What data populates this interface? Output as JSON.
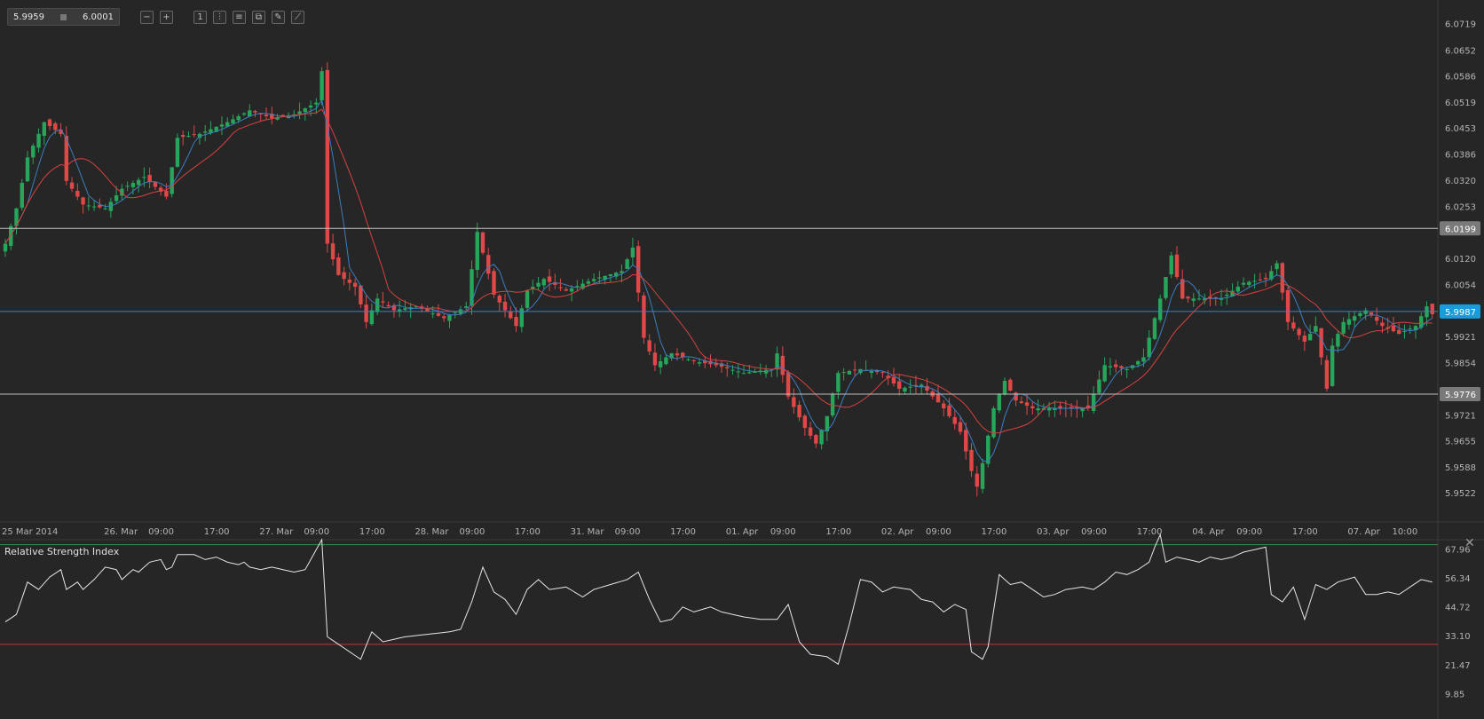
{
  "toolbar": {
    "bid": "5.9959",
    "ask": "6.0001",
    "buttons": [
      {
        "name": "zoom-out-icon",
        "glyph": "−"
      },
      {
        "name": "zoom-in-icon",
        "glyph": "+"
      },
      {
        "name": "timeframe-button",
        "glyph": "1"
      },
      {
        "name": "chart-type-icon",
        "glyph": "⫶"
      },
      {
        "name": "indicators-icon",
        "glyph": "≡"
      },
      {
        "name": "copy-icon",
        "glyph": "⧉"
      },
      {
        "name": "edit-icon",
        "glyph": "✎"
      },
      {
        "name": "draw-line-icon",
        "glyph": "⟋"
      }
    ]
  },
  "rsi_panel": {
    "title": "Relative Strength Index",
    "close_glyph": "✕"
  },
  "colors": {
    "background": "#262626",
    "bull": "#26a65b",
    "bear": "#e04848",
    "ma_fast": "#3a7ec1",
    "ma_slow": "#d9413f",
    "current_line": "#2f86c8",
    "current_badge": "#1a9cdb",
    "level_line": "#bfbfbf",
    "level_badge": "#7a7a7a",
    "rsi_line": "#e6e6e6",
    "rsi_upper": "#3c8c3c",
    "rsi_lower": "#c83232"
  },
  "chart_data": [
    {
      "type": "candlestick",
      "instrument_price_axis": true,
      "ylim": [
        5.945,
        6.075
      ],
      "y_ticks": [
        "6.0719",
        "6.0652",
        "6.0586",
        "6.0519",
        "6.0453",
        "6.0386",
        "6.0320",
        "6.0253",
        "6.0120",
        "6.0054",
        "5.9921",
        "5.9854",
        "5.9721",
        "5.9655",
        "5.9588",
        "5.9522"
      ],
      "x_labels": [
        {
          "text": "25 Mar 2014",
          "index": 0
        },
        {
          "text": "26. Mar",
          "index": 20
        },
        {
          "text": "09:00",
          "index": 28
        },
        {
          "text": "17:00",
          "index": 38
        },
        {
          "text": "27. Mar",
          "index": 48
        },
        {
          "text": "09:00",
          "index": 56
        },
        {
          "text": "17:00",
          "index": 66
        },
        {
          "text": "28. Mar",
          "index": 76
        },
        {
          "text": "09:00",
          "index": 84
        },
        {
          "text": "17:00",
          "index": 94
        },
        {
          "text": "31. Mar",
          "index": 104
        },
        {
          "text": "09:00",
          "index": 112
        },
        {
          "text": "17:00",
          "index": 122
        },
        {
          "text": "01. Apr",
          "index": 132
        },
        {
          "text": "09:00",
          "index": 140
        },
        {
          "text": "17:00",
          "index": 150
        },
        {
          "text": "02. Apr",
          "index": 160
        },
        {
          "text": "09:00",
          "index": 168
        },
        {
          "text": "17:00",
          "index": 178
        },
        {
          "text": "03. Apr",
          "index": 188
        },
        {
          "text": "09:00",
          "index": 196
        },
        {
          "text": "17:00",
          "index": 206
        },
        {
          "text": "04. Apr",
          "index": 216
        },
        {
          "text": "09:00",
          "index": 224
        },
        {
          "text": "17:00",
          "index": 234
        },
        {
          "text": "07. Apr",
          "index": 244
        },
        {
          "text": "10:00",
          "index": 252
        }
      ],
      "levels": [
        {
          "value": 6.0199,
          "label": "6.0199",
          "kind": "resistance"
        },
        {
          "value": 5.9776,
          "label": "5.9776",
          "kind": "support"
        }
      ],
      "current_price": {
        "value": 5.9987,
        "label": "5.9987"
      },
      "anchors": [
        [
          0,
          6.016
        ],
        [
          2,
          6.025
        ],
        [
          4,
          6.038
        ],
        [
          7,
          6.047
        ],
        [
          10,
          6.044
        ],
        [
          11,
          6.032
        ],
        [
          14,
          6.026
        ],
        [
          18,
          6.025
        ],
        [
          21,
          6.03
        ],
        [
          25,
          6.033
        ],
        [
          29,
          6.028
        ],
        [
          31,
          6.043
        ],
        [
          35,
          6.044
        ],
        [
          40,
          6.047
        ],
        [
          44,
          6.05
        ],
        [
          48,
          6.048
        ],
        [
          52,
          6.049
        ],
        [
          56,
          6.052
        ],
        [
          57,
          6.06
        ],
        [
          58,
          6.016
        ],
        [
          60,
          6.008
        ],
        [
          63,
          6.005
        ],
        [
          65,
          5.996
        ],
        [
          67,
          6.002
        ],
        [
          70,
          5.999
        ],
        [
          74,
          6.0
        ],
        [
          79,
          5.997
        ],
        [
          83,
          6.0
        ],
        [
          85,
          6.019
        ],
        [
          88,
          6.003
        ],
        [
          90,
          5.999
        ],
        [
          92,
          5.995
        ],
        [
          94,
          6.004
        ],
        [
          97,
          6.007
        ],
        [
          101,
          6.004
        ],
        [
          106,
          6.007
        ],
        [
          111,
          6.009
        ],
        [
          113,
          6.015
        ],
        [
          115,
          5.992
        ],
        [
          117,
          5.985
        ],
        [
          120,
          5.988
        ],
        [
          124,
          5.986
        ],
        [
          128,
          5.985
        ],
        [
          133,
          5.983
        ],
        [
          138,
          5.984
        ],
        [
          139,
          5.988
        ],
        [
          141,
          5.977
        ],
        [
          144,
          5.969
        ],
        [
          146,
          5.965
        ],
        [
          148,
          5.972
        ],
        [
          150,
          5.983
        ],
        [
          154,
          5.984
        ],
        [
          158,
          5.983
        ],
        [
          161,
          5.979
        ],
        [
          165,
          5.98
        ],
        [
          169,
          5.974
        ],
        [
          172,
          5.968
        ],
        [
          174,
          5.958
        ],
        [
          175,
          5.954
        ],
        [
          176,
          5.96
        ],
        [
          178,
          5.974
        ],
        [
          180,
          5.981
        ],
        [
          182,
          5.976
        ],
        [
          185,
          5.974
        ],
        [
          190,
          5.974
        ],
        [
          195,
          5.974
        ],
        [
          198,
          5.985
        ],
        [
          202,
          5.984
        ],
        [
          205,
          5.987
        ],
        [
          208,
          6.002
        ],
        [
          210,
          6.013
        ],
        [
          212,
          6.002
        ],
        [
          215,
          6.002
        ],
        [
          219,
          6.002
        ],
        [
          223,
          6.006
        ],
        [
          227,
          6.007
        ],
        [
          229,
          6.011
        ],
        [
          231,
          5.996
        ],
        [
          234,
          5.991
        ],
        [
          236,
          5.995
        ],
        [
          238,
          5.979
        ],
        [
          239,
          5.99
        ],
        [
          241,
          5.996
        ],
        [
          245,
          5.999
        ],
        [
          248,
          5.995
        ],
        [
          251,
          5.993
        ],
        [
          254,
          5.995
        ],
        [
          256,
          6.0
        ],
        [
          257,
          5.998
        ]
      ]
    },
    {
      "type": "line",
      "title": "Relative Strength Index",
      "ylim": [
        0,
        72
      ],
      "y_ticks": [
        67.96,
        56.34,
        44.72,
        33.1,
        21.47,
        9.85
      ],
      "levels": [
        70,
        30
      ],
      "anchors": [
        [
          0,
          39
        ],
        [
          2,
          42
        ],
        [
          4,
          55
        ],
        [
          6,
          52
        ],
        [
          8,
          57
        ],
        [
          10,
          60
        ],
        [
          11,
          52
        ],
        [
          13,
          55
        ],
        [
          14,
          52
        ],
        [
          16,
          56
        ],
        [
          18,
          61
        ],
        [
          20,
          60
        ],
        [
          21,
          56
        ],
        [
          23,
          60
        ],
        [
          24,
          59
        ],
        [
          26,
          63
        ],
        [
          28,
          64
        ],
        [
          29,
          60
        ],
        [
          30,
          61
        ],
        [
          31,
          66
        ],
        [
          34,
          66
        ],
        [
          36,
          64
        ],
        [
          38,
          65
        ],
        [
          40,
          63
        ],
        [
          42,
          62
        ],
        [
          43,
          63
        ],
        [
          44,
          61
        ],
        [
          46,
          60
        ],
        [
          48,
          61
        ],
        [
          50,
          60
        ],
        [
          52,
          59
        ],
        [
          54,
          60
        ],
        [
          56,
          68
        ],
        [
          57,
          72
        ],
        [
          58,
          33
        ],
        [
          62,
          27
        ],
        [
          64,
          24
        ],
        [
          66,
          35
        ],
        [
          68,
          31
        ],
        [
          70,
          32
        ],
        [
          72,
          33
        ],
        [
          76,
          34
        ],
        [
          80,
          35
        ],
        [
          82,
          36
        ],
        [
          84,
          47
        ],
        [
          86,
          61
        ],
        [
          88,
          51
        ],
        [
          90,
          48
        ],
        [
          92,
          42
        ],
        [
          94,
          52
        ],
        [
          96,
          56
        ],
        [
          98,
          52
        ],
        [
          101,
          53
        ],
        [
          104,
          49
        ],
        [
          106,
          52
        ],
        [
          109,
          54
        ],
        [
          112,
          56
        ],
        [
          114,
          59
        ],
        [
          116,
          48
        ],
        [
          118,
          39
        ],
        [
          120,
          40
        ],
        [
          122,
          45
        ],
        [
          124,
          43
        ],
        [
          127,
          45
        ],
        [
          129,
          43
        ],
        [
          131,
          42
        ],
        [
          133,
          41
        ],
        [
          136,
          40
        ],
        [
          139,
          40
        ],
        [
          141,
          46
        ],
        [
          143,
          31
        ],
        [
          145,
          26
        ],
        [
          148,
          25
        ],
        [
          150,
          22
        ],
        [
          152,
          38
        ],
        [
          154,
          56
        ],
        [
          156,
          55
        ],
        [
          158,
          51
        ],
        [
          160,
          53
        ],
        [
          163,
          52
        ],
        [
          165,
          48
        ],
        [
          167,
          47
        ],
        [
          169,
          43
        ],
        [
          171,
          46
        ],
        [
          173,
          44
        ],
        [
          174,
          27
        ],
        [
          176,
          24
        ],
        [
          177,
          29
        ],
        [
          179,
          58
        ],
        [
          181,
          54
        ],
        [
          183,
          55
        ],
        [
          185,
          52
        ],
        [
          187,
          49
        ],
        [
          189,
          50
        ],
        [
          191,
          52
        ],
        [
          194,
          53
        ],
        [
          196,
          52
        ],
        [
          198,
          55
        ],
        [
          200,
          59
        ],
        [
          202,
          58
        ],
        [
          204,
          60
        ],
        [
          206,
          63
        ],
        [
          207,
          69
        ],
        [
          208,
          74
        ],
        [
          209,
          63
        ],
        [
          211,
          65
        ],
        [
          213,
          64
        ],
        [
          215,
          63
        ],
        [
          217,
          65
        ],
        [
          219,
          64
        ],
        [
          221,
          65
        ],
        [
          223,
          67
        ],
        [
          225,
          68
        ],
        [
          227,
          69
        ],
        [
          228,
          50
        ],
        [
          230,
          47
        ],
        [
          232,
          53
        ],
        [
          234,
          40
        ],
        [
          236,
          54
        ],
        [
          238,
          52
        ],
        [
          240,
          55
        ],
        [
          243,
          57
        ],
        [
          245,
          50
        ],
        [
          247,
          50
        ],
        [
          249,
          51
        ],
        [
          251,
          50
        ],
        [
          253,
          53
        ],
        [
          255,
          56
        ],
        [
          257,
          55
        ]
      ]
    }
  ]
}
